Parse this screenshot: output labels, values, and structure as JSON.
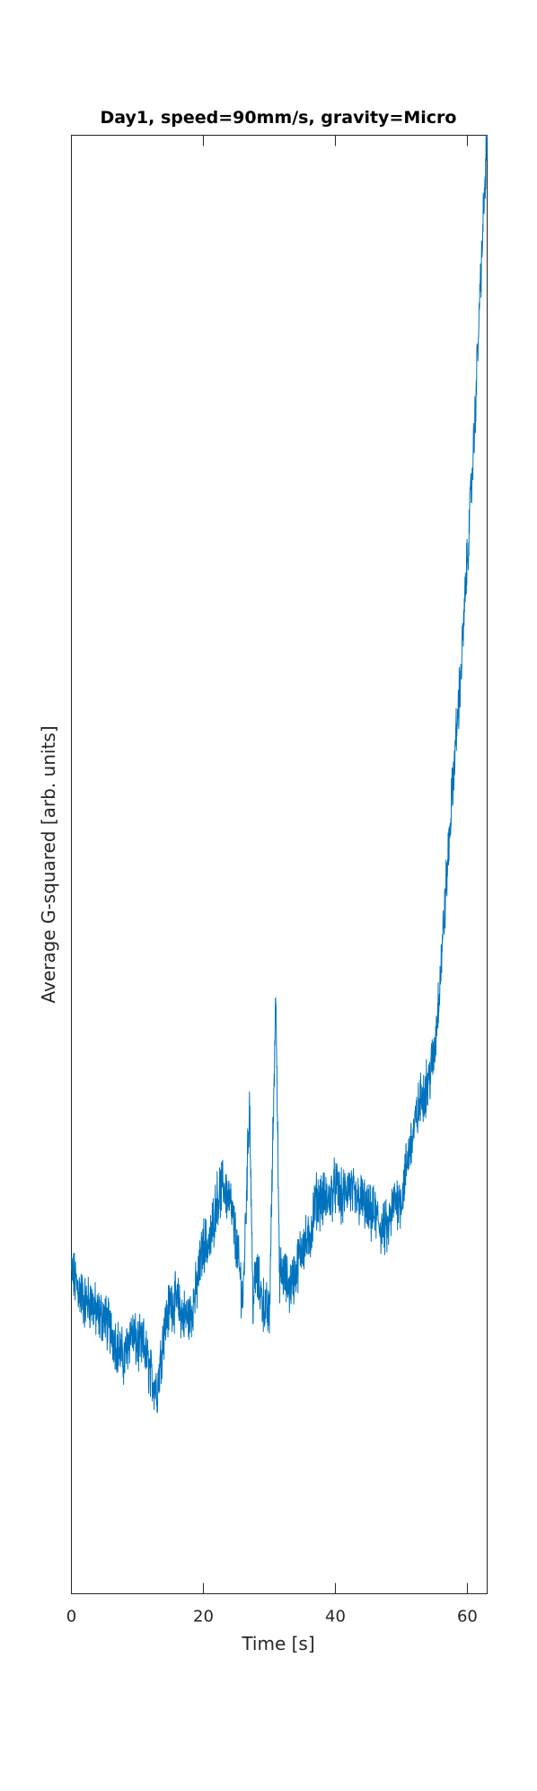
{
  "chart_data": {
    "type": "line",
    "title": "Day1, speed=90mm/s, gravity=Micro",
    "xlabel": "Time [s]",
    "ylabel": "Average G-squared [arb. units]",
    "xlim": [
      0,
      63
    ],
    "ylim": [
      0,
      1
    ],
    "xticks": [
      0,
      20,
      40,
      60
    ],
    "xtick_labels": [
      "0",
      "20",
      "40",
      "60"
    ],
    "yticks_labeled": false,
    "grid": false,
    "line_color": "#0072BD",
    "series": [
      {
        "x": [
          0,
          1,
          2,
          3,
          4,
          5,
          6,
          7,
          8,
          9,
          10,
          11,
          12,
          13,
          14,
          15,
          16,
          17,
          18,
          19,
          20,
          21,
          22,
          23,
          24,
          25,
          26,
          27,
          27.5,
          28,
          29,
          30,
          31,
          31.5,
          32,
          33,
          34,
          35,
          36,
          37,
          38,
          39,
          40,
          41,
          42,
          43,
          44,
          45,
          46,
          47,
          48,
          49,
          50,
          51,
          52,
          53,
          54,
          55,
          56,
          57,
          58,
          59,
          60,
          61,
          62,
          63
        ],
        "y": [
          0.22,
          0.21,
          0.2,
          0.2,
          0.19,
          0.19,
          0.18,
          0.17,
          0.16,
          0.18,
          0.17,
          0.17,
          0.15,
          0.14,
          0.18,
          0.2,
          0.2,
          0.19,
          0.19,
          0.21,
          0.24,
          0.24,
          0.27,
          0.28,
          0.27,
          0.24,
          0.2,
          0.34,
          0.2,
          0.22,
          0.2,
          0.19,
          0.42,
          0.22,
          0.22,
          0.21,
          0.22,
          0.24,
          0.24,
          0.27,
          0.27,
          0.27,
          0.28,
          0.27,
          0.28,
          0.27,
          0.27,
          0.26,
          0.26,
          0.25,
          0.25,
          0.27,
          0.27,
          0.3,
          0.32,
          0.34,
          0.35,
          0.37,
          0.43,
          0.5,
          0.57,
          0.63,
          0.71,
          0.79,
          0.9,
          1.0
        ]
      }
    ]
  }
}
